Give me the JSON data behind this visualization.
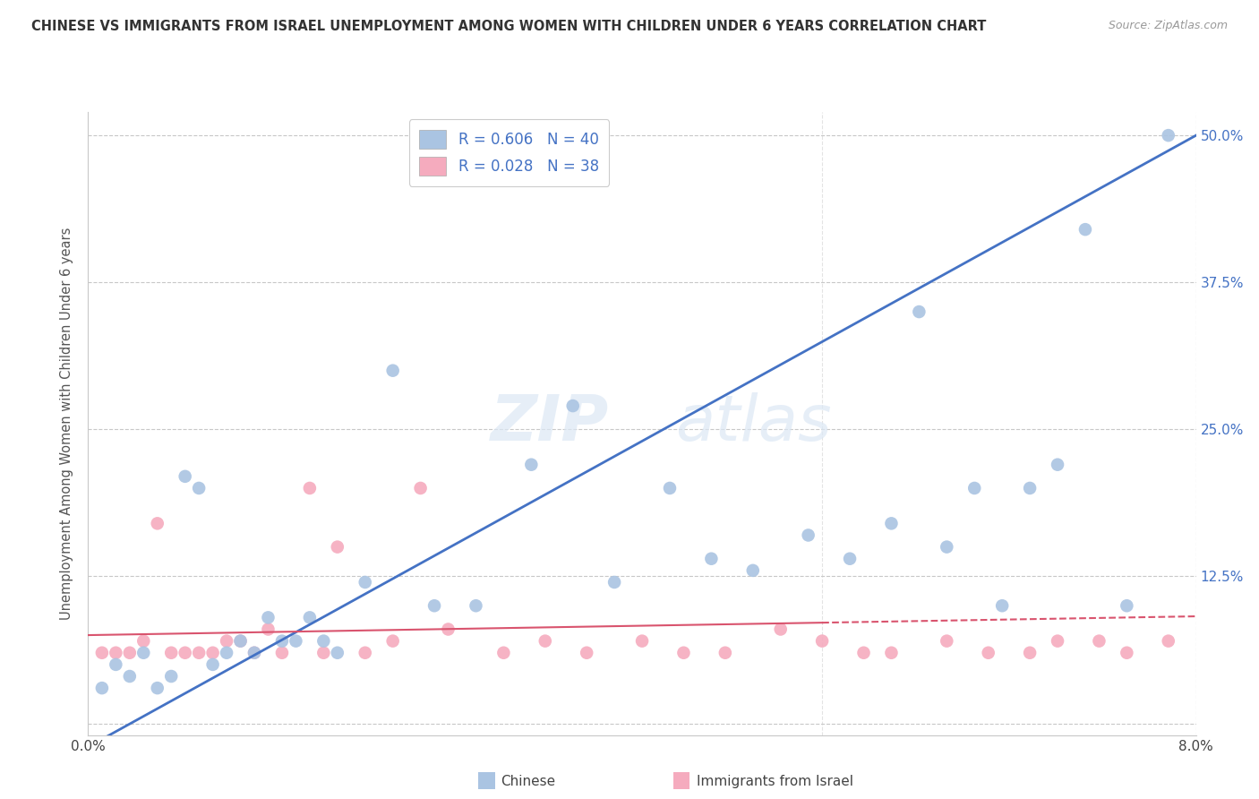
{
  "title": "CHINESE VS IMMIGRANTS FROM ISRAEL UNEMPLOYMENT AMONG WOMEN WITH CHILDREN UNDER 6 YEARS CORRELATION CHART",
  "source": "Source: ZipAtlas.com",
  "ylabel": "Unemployment Among Women with Children Under 6 years",
  "legend_chinese_r": "R = 0.606",
  "legend_chinese_n": "N = 40",
  "legend_israel_r": "R = 0.028",
  "legend_israel_n": "N = 38",
  "legend_label_chinese": "Chinese",
  "legend_label_israel": "Immigrants from Israel",
  "chinese_color": "#aac4e2",
  "israel_color": "#f5abbe",
  "chinese_line_color": "#4472c4",
  "israel_line_color": "#d9546e",
  "background_color": "#ffffff",
  "grid_color": "#c8c8c8",
  "watermark_zip": "ZIP",
  "watermark_atlas": "atlas",
  "xlim": [
    0.0,
    0.08
  ],
  "ylim": [
    -0.01,
    0.52
  ],
  "yticks": [
    0.0,
    0.125,
    0.25,
    0.375,
    0.5
  ],
  "ytick_labels": [
    "",
    "12.5%",
    "25.0%",
    "37.5%",
    "50.0%"
  ],
  "chinese_scatter_x": [
    0.001,
    0.002,
    0.003,
    0.004,
    0.005,
    0.006,
    0.007,
    0.008,
    0.009,
    0.01,
    0.011,
    0.012,
    0.013,
    0.014,
    0.015,
    0.016,
    0.017,
    0.018,
    0.02,
    0.022,
    0.025,
    0.028,
    0.032,
    0.035,
    0.038,
    0.042,
    0.045,
    0.048,
    0.052,
    0.055,
    0.058,
    0.06,
    0.062,
    0.064,
    0.066,
    0.068,
    0.07,
    0.072,
    0.075,
    0.078
  ],
  "chinese_scatter_y": [
    0.03,
    0.05,
    0.04,
    0.06,
    0.03,
    0.04,
    0.21,
    0.2,
    0.05,
    0.06,
    0.07,
    0.06,
    0.09,
    0.07,
    0.07,
    0.09,
    0.07,
    0.06,
    0.12,
    0.3,
    0.1,
    0.1,
    0.22,
    0.27,
    0.12,
    0.2,
    0.14,
    0.13,
    0.16,
    0.14,
    0.17,
    0.35,
    0.15,
    0.2,
    0.1,
    0.2,
    0.22,
    0.42,
    0.1,
    0.5
  ],
  "israel_scatter_x": [
    0.001,
    0.002,
    0.003,
    0.004,
    0.005,
    0.006,
    0.007,
    0.008,
    0.009,
    0.01,
    0.011,
    0.012,
    0.013,
    0.014,
    0.016,
    0.017,
    0.018,
    0.02,
    0.022,
    0.024,
    0.026,
    0.03,
    0.033,
    0.036,
    0.04,
    0.043,
    0.046,
    0.05,
    0.053,
    0.056,
    0.058,
    0.062,
    0.065,
    0.068,
    0.07,
    0.073,
    0.075,
    0.078
  ],
  "israel_scatter_y": [
    0.06,
    0.06,
    0.06,
    0.07,
    0.17,
    0.06,
    0.06,
    0.06,
    0.06,
    0.07,
    0.07,
    0.06,
    0.08,
    0.06,
    0.2,
    0.06,
    0.15,
    0.06,
    0.07,
    0.2,
    0.08,
    0.06,
    0.07,
    0.06,
    0.07,
    0.06,
    0.06,
    0.08,
    0.07,
    0.06,
    0.06,
    0.07,
    0.06,
    0.06,
    0.07,
    0.07,
    0.06,
    0.07
  ],
  "chinese_line_x0": 0.0,
  "chinese_line_y0": -0.02,
  "chinese_line_x1": 0.08,
  "chinese_line_y1": 0.5,
  "israel_line_x0": 0.0,
  "israel_line_y0": 0.075,
  "israel_line_x1": 0.08,
  "israel_line_y1": 0.091
}
